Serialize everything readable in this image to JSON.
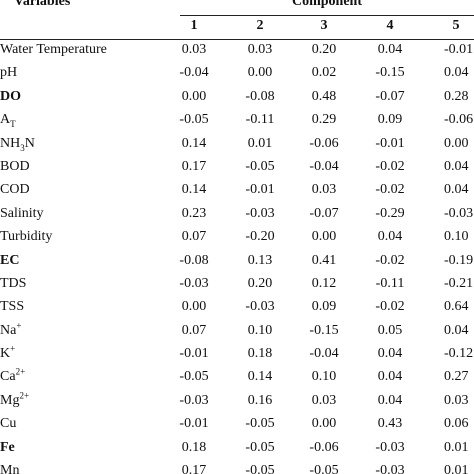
{
  "header": {
    "variables": "Variables",
    "component": "Component",
    "numbers": [
      "1",
      "2",
      "3",
      "4",
      "5"
    ]
  },
  "rows": [
    {
      "label": "Water Temperature",
      "values": [
        "0.03",
        "0.03",
        "0.20",
        "0.04",
        "-0.01"
      ]
    },
    {
      "label": "pH",
      "values": [
        "-0.04",
        "0.00",
        "0.02",
        "-0.15",
        "0.04"
      ]
    },
    {
      "label": "DO",
      "values": [
        "0.00",
        "-0.08",
        "0.48",
        "-0.07",
        "0.28"
      ]
    },
    {
      "label_main": "A",
      "label_sub": "T",
      "values": [
        "-0.05",
        "-0.11",
        "0.29",
        "0.09",
        "-0.06"
      ]
    },
    {
      "label_pre": "NH",
      "label_sub": "3",
      "label_post": "N",
      "values": [
        "0.14",
        "0.01",
        "-0.06",
        "-0.01",
        "0.00"
      ]
    },
    {
      "label": "BOD",
      "values": [
        "0.17",
        "-0.05",
        "-0.04",
        "-0.02",
        "0.04"
      ]
    },
    {
      "label": "COD",
      "values": [
        "0.14",
        "-0.01",
        "0.03",
        "-0.02",
        "0.04"
      ]
    },
    {
      "label": "Salinity",
      "values": [
        "0.23",
        "-0.03",
        "-0.07",
        "-0.29",
        "-0.03"
      ]
    },
    {
      "label": "Turbidity",
      "values": [
        "0.07",
        "-0.20",
        "0.00",
        "0.04",
        "0.10"
      ]
    },
    {
      "label": "EC",
      "values": [
        "-0.08",
        "0.13",
        "0.41",
        "-0.02",
        "-0.19"
      ]
    },
    {
      "label": "TDS",
      "values": [
        "-0.03",
        "0.20",
        "0.12",
        "-0.11",
        "-0.21"
      ]
    },
    {
      "label": "TSS",
      "values": [
        "0.00",
        "-0.03",
        "0.09",
        "-0.02",
        "0.64"
      ]
    },
    {
      "label_main": "Na",
      "label_sup": "+",
      "values": [
        "0.07",
        "0.10",
        "-0.15",
        "0.05",
        "0.04"
      ]
    },
    {
      "label_main": "K",
      "label_sup": "+",
      "values": [
        "-0.01",
        "0.18",
        "-0.04",
        "0.04",
        "-0.12"
      ]
    },
    {
      "label_main": "Ca",
      "label_sup": "2+",
      "values": [
        "-0.05",
        "0.14",
        "0.10",
        "0.04",
        "0.27"
      ]
    },
    {
      "label_main": "Mg",
      "label_sup": "2+",
      "values": [
        "-0.03",
        "0.16",
        "0.03",
        "0.04",
        "0.03"
      ]
    },
    {
      "label": "Cu",
      "values": [
        "-0.01",
        "-0.05",
        "0.00",
        "0.43",
        "0.06"
      ]
    },
    {
      "label": "Fe",
      "values": [
        "0.18",
        "-0.05",
        "-0.06",
        "-0.03",
        "0.01"
      ]
    },
    {
      "label": "Mn",
      "values": [
        "0.17",
        "-0.05",
        "-0.05",
        "-0.03",
        "0.01"
      ]
    }
  ]
}
